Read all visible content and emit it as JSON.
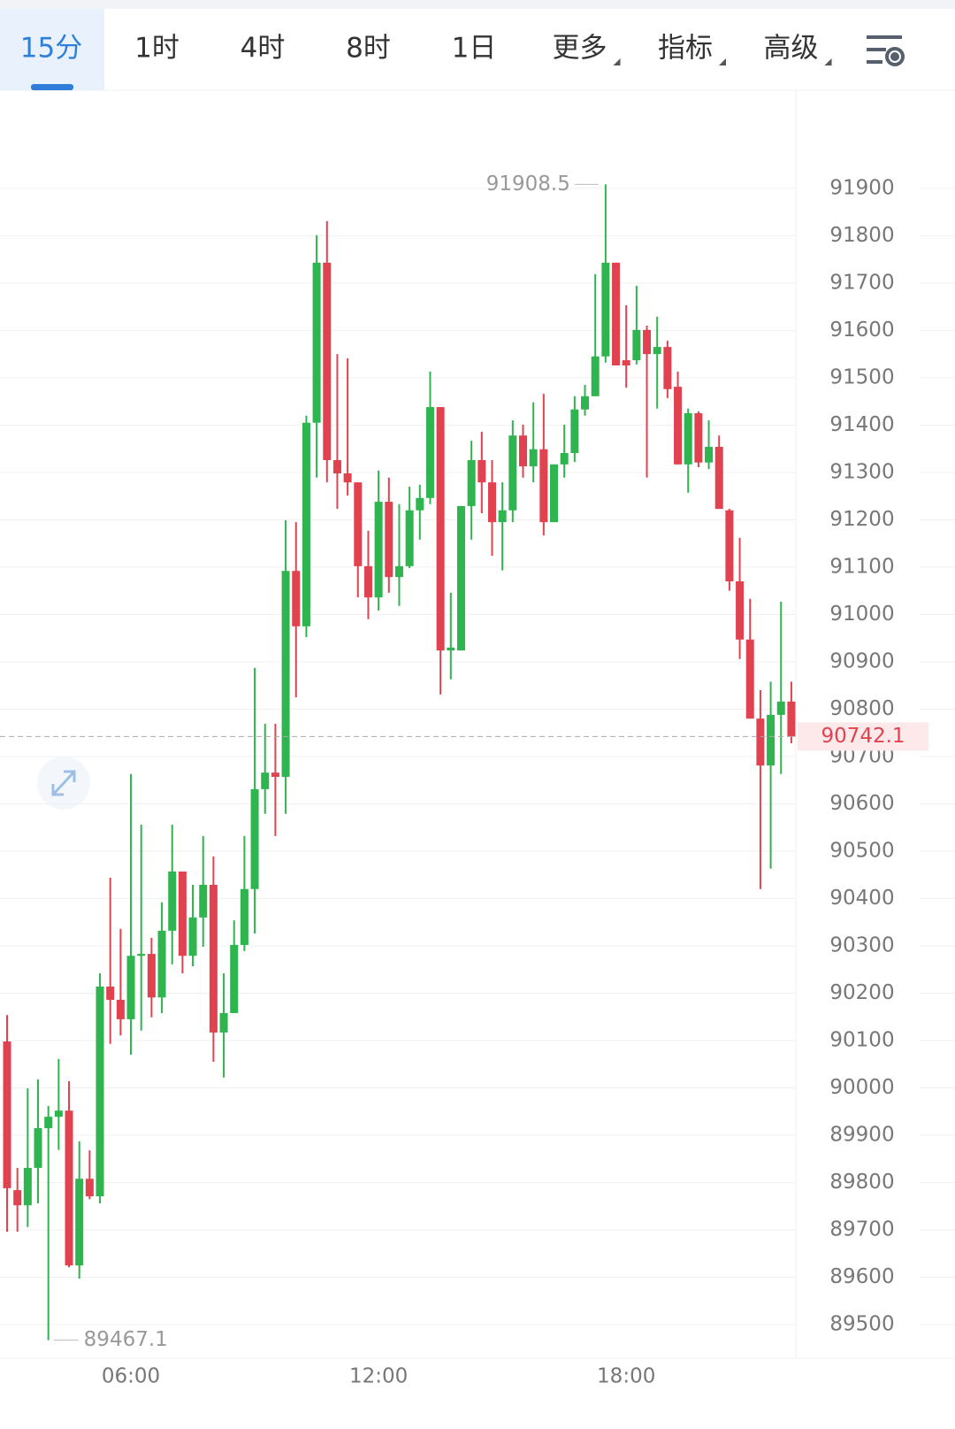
{
  "tabs": [
    {
      "label": "15分",
      "dropdown": false
    },
    {
      "label": "1时",
      "dropdown": false
    },
    {
      "label": "4时",
      "dropdown": false
    },
    {
      "label": "8时",
      "dropdown": false
    },
    {
      "label": "1日",
      "dropdown": false
    },
    {
      "label": "更多",
      "dropdown": true
    },
    {
      "label": "指标",
      "dropdown": true
    },
    {
      "label": "高级",
      "dropdown": true
    }
  ],
  "active_tab": 0,
  "chart_data": {
    "type": "candlestick",
    "categories": [
      null,
      null,
      null,
      null,
      null,
      null,
      null,
      null,
      null,
      null,
      null,
      null,
      "06:00",
      null,
      null,
      null,
      null,
      null,
      null,
      null,
      null,
      null,
      null,
      null,
      null,
      null,
      null,
      null,
      null,
      null,
      null,
      null,
      null,
      null,
      null,
      null,
      "12:00",
      null,
      null,
      null,
      null,
      null,
      null,
      null,
      null,
      null,
      null,
      null,
      null,
      null,
      null,
      null,
      null,
      null,
      null,
      null,
      null,
      null,
      null,
      null,
      "18:00",
      null,
      null,
      null,
      null,
      null,
      null,
      null,
      null,
      null,
      null,
      null,
      null,
      null,
      null,
      null,
      null
    ],
    "open": [
      90098,
      89784,
      89752,
      89831,
      89915,
      89939,
      89952,
      89625,
      89808,
      89771,
      90214,
      90186,
      90145,
      90279,
      90283,
      90191,
      90332,
      90457,
      90279,
      90360,
      90429,
      90117,
      90158,
      90302,
      90420,
      90631,
      90666,
      90657,
      91092,
      90975,
      91405,
      91743,
      91326,
      91298,
      91279,
      91102,
      91036,
      91238,
      91079,
      91102,
      91220,
      91246,
      91438,
      90924,
      90924,
      91229,
      91326,
      91279,
      91195,
      91220,
      91378,
      91313,
      91349,
      91195,
      91317,
      91341,
      91433,
      91461,
      91545,
      91743,
      91537,
      91537,
      91601,
      91550,
      91565,
      91481,
      91317,
      91425,
      91321,
      91354,
      91220,
      91070,
      90947,
      90780,
      90681,
      90788,
      90816
    ],
    "high": [
      90154,
      89831,
      89999,
      90018,
      89962,
      90061,
      90014,
      89887,
      89868,
      90242,
      90444,
      90336,
      90663,
      90556,
      90317,
      90392,
      90556,
      90457,
      90429,
      90532,
      90489,
      90242,
      90354,
      90532,
      90887,
      90769,
      90769,
      91199,
      91195,
      91420,
      91801,
      91831,
      91550,
      91541,
      91279,
      91177,
      91304,
      91289,
      91233,
      91270,
      91274,
      91513,
      91438,
      91046,
      91229,
      91367,
      91386,
      91326,
      91279,
      91410,
      91401,
      91448,
      91466,
      91317,
      91401,
      91461,
      91485,
      91719,
      91908.5,
      91743,
      91653,
      91694,
      91610,
      91629,
      91578,
      91513,
      91435,
      91429,
      91410,
      91378,
      91223,
      91162,
      91033,
      90840,
      90858,
      91027,
      90858
    ],
    "low": [
      89696,
      89696,
      89706,
      89756,
      89467.1,
      89869,
      89621,
      89597,
      89765,
      89756,
      90093,
      90111,
      90070,
      90121,
      90149,
      90158,
      90261,
      90242,
      90257,
      90298,
      90055,
      90022,
      90158,
      90289,
      90326,
      90579,
      90532,
      90579,
      90825,
      90952,
      91289,
      91279,
      91223,
      91251,
      91036,
      90990,
      91008,
      91046,
      91018,
      91098,
      91158,
      91233,
      90831,
      90863,
      90924,
      91158,
      91214,
      91124,
      91093,
      91195,
      91289,
      91279,
      91167,
      91195,
      91289,
      91322,
      91420,
      91461,
      91532,
      91526,
      91479,
      91528,
      91289,
      91435,
      91457,
      91317,
      91257,
      91311,
      91307,
      91223,
      91050,
      90906,
      90780,
      90420,
      90463,
      90663,
      90728
    ],
    "close": [
      89788,
      89752,
      89831,
      89915,
      89939,
      89952,
      89625,
      89808,
      89771,
      90214,
      90186,
      90145,
      90279,
      90283,
      90191,
      90332,
      90457,
      90279,
      90360,
      90429,
      90117,
      90158,
      90302,
      90420,
      90631,
      90666,
      90657,
      91092,
      90975,
      91405,
      91743,
      91326,
      91298,
      91279,
      91102,
      91036,
      91238,
      91079,
      91102,
      91220,
      91246,
      91438,
      90924,
      90930,
      91229,
      91326,
      91279,
      91195,
      91220,
      91378,
      91313,
      91349,
      91195,
      91317,
      91341,
      91433,
      91461,
      91545,
      91743,
      91526,
      91526,
      91601,
      91550,
      91565,
      91476,
      91317,
      91425,
      91321,
      91354,
      91223,
      91070,
      90947,
      90780,
      90681,
      90788,
      90816,
      90742.1
    ],
    "up_color": "#2eb54f",
    "down_color": "#e0434f",
    "ylim": [
      89429,
      92111
    ],
    "yticks": [
      89500,
      89600,
      89700,
      89800,
      89900,
      90000,
      90100,
      90200,
      90300,
      90400,
      90500,
      90600,
      90700,
      90800,
      90900,
      91000,
      91100,
      91200,
      91300,
      91400,
      91500,
      91600,
      91700,
      91800,
      91900
    ],
    "grid": true,
    "high_marker": 91908.5,
    "high_index": 58,
    "low_marker": 89467.1,
    "low_index": 4,
    "last_price": 90742.1
  }
}
